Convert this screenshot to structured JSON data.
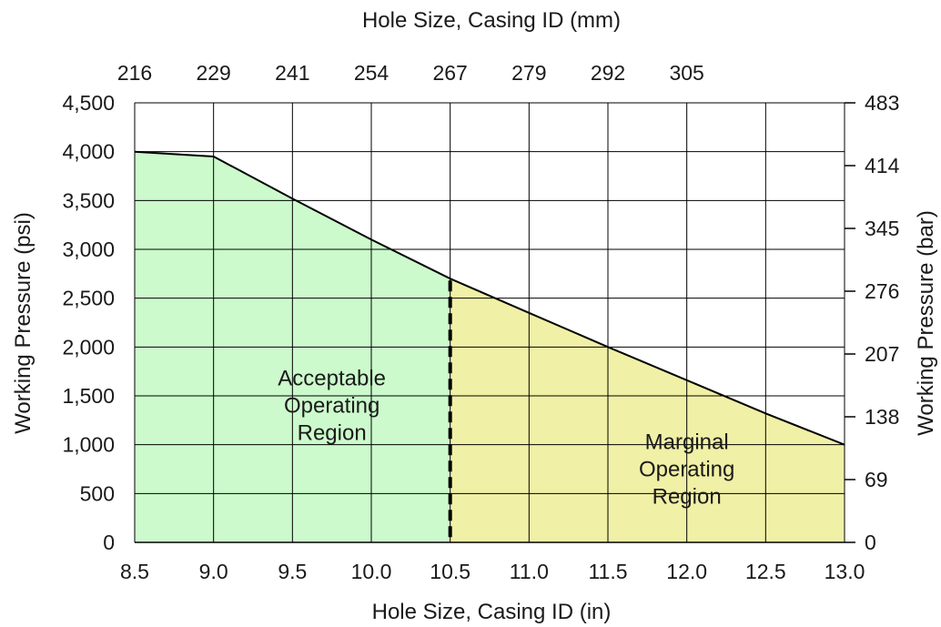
{
  "chart_data": {
    "type": "area",
    "x": [
      8.5,
      9.0,
      9.5,
      10.0,
      10.5,
      11.0,
      11.5,
      12.0,
      12.5,
      13.0
    ],
    "y": [
      4000,
      3950,
      3520,
      3100,
      2700,
      2350,
      2000,
      1660,
      1320,
      1000
    ],
    "xlim": [
      8.5,
      13.0
    ],
    "ylim": [
      0,
      4500
    ],
    "grid": true,
    "xlabel": "Hole Size, Casing ID (in)",
    "ylabel": "Working Pressure (psi)",
    "top_axis_label": "Hole Size, Casing ID (mm)",
    "right_axis_label": "Working Pressure (bar)",
    "x_ticks": [
      8.5,
      9.0,
      9.5,
      10.0,
      10.5,
      11.0,
      11.5,
      12.0,
      12.5,
      13.0
    ],
    "x_tick_labels": [
      "8.5",
      "9.0",
      "9.5",
      "10.0",
      "10.5",
      "11.0",
      "11.5",
      "12.0",
      "12.5",
      "13.0"
    ],
    "y_ticks": [
      0,
      500,
      1000,
      1500,
      2000,
      2500,
      3000,
      3500,
      4000,
      4500
    ],
    "y_tick_labels": [
      "0",
      "500",
      "1,000",
      "1,500",
      "2,000",
      "2,500",
      "3,000",
      "3,500",
      "4,000",
      "4,500"
    ],
    "top_ticks": [
      8.5,
      9.0,
      9.5,
      10.0,
      10.5,
      11.0,
      11.5,
      12.0
    ],
    "top_tick_labels": [
      "216",
      "229",
      "241",
      "254",
      "267",
      "279",
      "292",
      "305"
    ],
    "right_ticks_psi": [
      0,
      1000,
      2000,
      3000,
      4000,
      5000,
      6000,
      7000
    ],
    "right_tick_labels": [
      "0",
      "69",
      "138",
      "207",
      "276",
      "345",
      "414",
      "483"
    ],
    "divider_x": 10.5,
    "regions": [
      {
        "label": [
          "Acceptable",
          "Operating",
          "Region"
        ],
        "x_from": 8.5,
        "x_to": 10.5,
        "label_x": 9.75,
        "label_y": 1400,
        "color": "#ccfacc"
      },
      {
        "label": [
          "Marginal",
          "Operating",
          "Region"
        ],
        "x_from": 10.5,
        "x_to": 13.0,
        "label_x": 12.0,
        "label_y": 750,
        "color": "#f0f0a6"
      }
    ],
    "line_color": "#000000"
  }
}
